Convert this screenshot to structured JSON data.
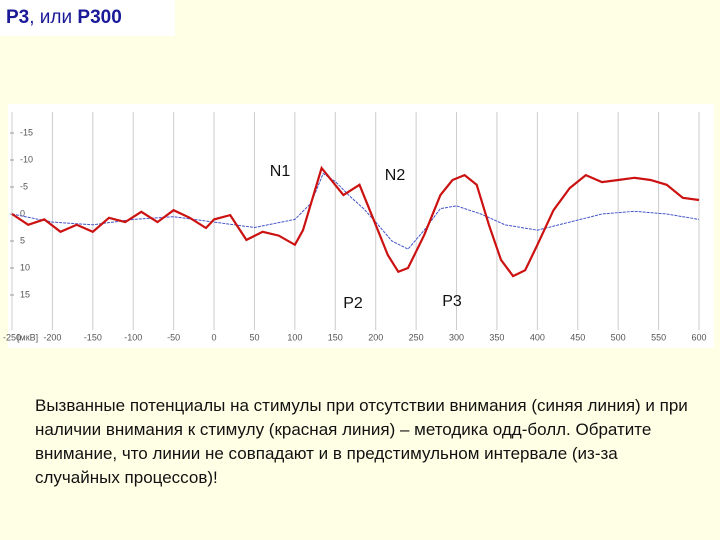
{
  "title_parts": [
    "P3",
    ", или ",
    "P300"
  ],
  "chart_data": {
    "type": "line",
    "y_axis_label": "[мкВ]",
    "xlim": [
      -250,
      600
    ],
    "ylim": [
      -20,
      20
    ],
    "y_inverted": true,
    "grid": "x",
    "xticks": [
      -250,
      -200,
      -150,
      -100,
      -50,
      0,
      50,
      100,
      150,
      200,
      250,
      300,
      350,
      400,
      450,
      500,
      550,
      600
    ],
    "yticks": [
      -15,
      -10,
      -5,
      0,
      5,
      10,
      15
    ],
    "annotations": [
      "N1",
      "N2",
      "P2",
      "P3"
    ],
    "series": [
      {
        "name": "red",
        "color": "#cc1111",
        "x": [
          -250,
          -230,
          -210,
          -190,
          -170,
          -150,
          -130,
          -110,
          -90,
          -70,
          -50,
          -30,
          -10,
          0,
          20,
          40,
          60,
          80,
          100,
          110,
          133,
          160,
          180,
          200,
          215,
          228,
          240,
          260,
          280,
          295,
          310,
          325,
          340,
          355,
          370,
          385,
          400,
          420,
          440,
          460,
          480,
          500,
          520,
          540,
          560,
          580,
          600
        ],
        "values": [
          0,
          2,
          1,
          3.3,
          2,
          3.3,
          0.7,
          1.5,
          -0.4,
          1.5,
          -0.7,
          0.7,
          2.6,
          1,
          0.2,
          4.8,
          3.3,
          4,
          5.7,
          3,
          -8.5,
          -3.5,
          -5.4,
          2,
          7.6,
          10.7,
          10,
          3.9,
          -3.5,
          -6.3,
          -7.2,
          -5.4,
          2,
          8.5,
          11.5,
          10.4,
          5.7,
          -0.7,
          -4.8,
          -7.2,
          -5.9,
          -6.3,
          -6.7,
          -6.3,
          -5.4,
          -3,
          -2.6
        ]
      },
      {
        "name": "blue",
        "color": "#4455cc",
        "x": [
          -250,
          -200,
          -150,
          -100,
          -50,
          0,
          50,
          100,
          120,
          135,
          150,
          170,
          185,
          200,
          220,
          240,
          260,
          280,
          300,
          330,
          360,
          400,
          440,
          480,
          520,
          560,
          600
        ],
        "values": [
          0,
          1.5,
          2,
          1,
          0.5,
          1.5,
          2.5,
          1,
          -2,
          -7.5,
          -6,
          -3,
          -1,
          1.5,
          5,
          6.5,
          3,
          -1,
          -1.5,
          0,
          2,
          3,
          1.5,
          0,
          -0.5,
          0,
          1
        ]
      }
    ]
  },
  "caption": "Вызванные потенциалы на стимулы при отсутствии внимания (синяя линия) и при наличии внимания к стимулу (красная линия) – методика одд-болл. Обратите внимание, что линии не совпадают и в предстимульном интервале (из-за случайных процессов)!"
}
